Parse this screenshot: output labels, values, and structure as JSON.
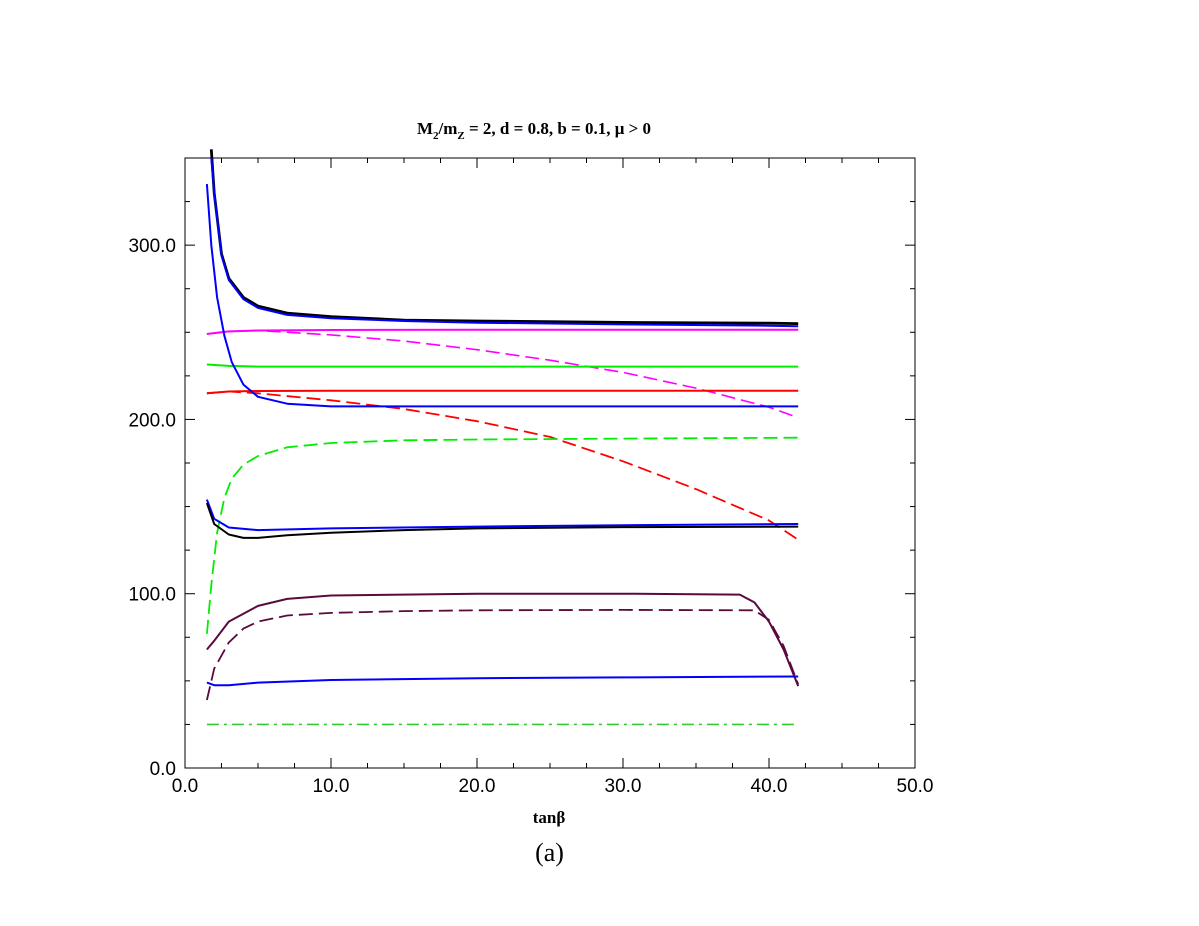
{
  "chart_data": {
    "type": "line",
    "title": {
      "parts": [
        "M",
        "2",
        "/m",
        "Z",
        " = 2, d = 0.8, b = 0.1, μ > 0"
      ]
    },
    "xlabel": "tanβ",
    "ylabel": "",
    "xlim": [
      0,
      50
    ],
    "ylim": [
      0,
      350
    ],
    "x_ticks": [
      0,
      10,
      20,
      30,
      40,
      50
    ],
    "x_tick_labels": [
      "0.0",
      "10.0",
      "20.0",
      "30.0",
      "40.0",
      "50.0"
    ],
    "y_ticks": [
      0,
      100,
      200,
      300
    ],
    "y_tick_labels": [
      "0.0",
      "100.0",
      "200.0",
      "300.0"
    ],
    "grid": false,
    "series": [
      {
        "color": "#000000",
        "dash": "solid",
        "width": 2.8,
        "x": [
          1.8,
          2,
          2.5,
          3,
          4,
          5,
          7,
          10,
          15,
          20,
          30,
          40,
          42
        ],
        "y": [
          355,
          330,
          295,
          281,
          270,
          265,
          261,
          259,
          257,
          256.5,
          255.7,
          255.2,
          255
        ]
      },
      {
        "color": "#0000ff",
        "dash": "solid",
        "width": 2,
        "x": [
          1.8,
          2,
          2.5,
          3,
          4,
          5,
          7,
          10,
          15,
          20,
          30,
          40,
          42
        ],
        "y": [
          350,
          330,
          294,
          280,
          269,
          264,
          260,
          258,
          256.5,
          255.5,
          254.5,
          253.8,
          253.5
        ]
      },
      {
        "color": "#ff00ff",
        "dash": "solid",
        "width": 2,
        "x": [
          1.5,
          3,
          5,
          10,
          20,
          30,
          42
        ],
        "y": [
          249,
          250.5,
          251,
          251.3,
          251.5,
          251.5,
          251.5
        ]
      },
      {
        "color": "#ff00ff",
        "dash": "dashed",
        "width": 1.6,
        "x": [
          1.5,
          3,
          5,
          10,
          15,
          20,
          25,
          30,
          35,
          40,
          42
        ],
        "y": [
          249,
          250.5,
          251,
          248.5,
          245,
          240,
          234,
          227,
          218,
          207,
          201
        ]
      },
      {
        "color": "#00ee00",
        "dash": "solid",
        "width": 2,
        "x": [
          1.5,
          3,
          5,
          10,
          20,
          30,
          42
        ],
        "y": [
          231.5,
          230.7,
          230.3,
          230.3,
          230.3,
          230.3,
          230.3
        ]
      },
      {
        "color": "#ff0000",
        "dash": "solid",
        "width": 2,
        "x": [
          1.5,
          3,
          5,
          10,
          20,
          30,
          42
        ],
        "y": [
          215,
          216,
          216.3,
          216.5,
          216.5,
          216.5,
          216.5
        ]
      },
      {
        "color": "#ff0000",
        "dash": "dashed",
        "width": 1.8,
        "x": [
          1.5,
          3,
          5,
          10,
          15,
          20,
          25,
          30,
          35,
          40,
          42
        ],
        "y": [
          215,
          216,
          215,
          211,
          206,
          199,
          190,
          176,
          160,
          142,
          131
        ]
      },
      {
        "color": "#0000ff",
        "dash": "solid",
        "width": 2,
        "x": [
          1.5,
          1.8,
          2.2,
          2.7,
          3.2,
          4,
          5,
          7,
          10,
          20,
          30,
          42
        ],
        "y": [
          335,
          300,
          270,
          248,
          233,
          220,
          213,
          209,
          207.5,
          207.5,
          207.5,
          207.5
        ]
      },
      {
        "color": "#00ee00",
        "dash": "dashed",
        "width": 1.8,
        "x": [
          1.5,
          1.8,
          2.2,
          2.7,
          3.2,
          4,
          5,
          7,
          10,
          15,
          20,
          30,
          42
        ],
        "y": [
          77,
          105,
          135,
          155,
          166,
          174,
          179,
          184,
          186.5,
          188,
          188.5,
          189,
          189.5
        ]
      },
      {
        "color": "#0000ff",
        "dash": "solid",
        "width": 2,
        "x": [
          1.5,
          2,
          3,
          5,
          10,
          20,
          30,
          42
        ],
        "y": [
          154,
          143,
          138,
          136.5,
          137.5,
          138.5,
          139.3,
          140
        ]
      },
      {
        "color": "#000000",
        "dash": "solid",
        "width": 2,
        "x": [
          1.5,
          2,
          3,
          4,
          5,
          7,
          10,
          15,
          20,
          30,
          42
        ],
        "y": [
          152,
          140,
          134,
          132,
          132,
          133.5,
          135,
          136.5,
          137.5,
          138.2,
          138.5
        ]
      },
      {
        "color": "#5a0a3c",
        "dash": "solid",
        "width": 2,
        "x": [
          1.5,
          2,
          3,
          5,
          7,
          10,
          20,
          30,
          38,
          39,
          40,
          41,
          42
        ],
        "y": [
          68,
          73,
          84,
          93,
          97,
          99,
          100,
          100,
          99.5,
          95,
          84,
          68,
          47
        ]
      },
      {
        "color": "#5a0a3c",
        "dash": "dashed",
        "width": 1.8,
        "x": [
          1.5,
          2,
          3,
          4,
          5,
          7,
          10,
          15,
          20,
          30,
          39,
          40,
          41,
          42
        ],
        "y": [
          39,
          57,
          72,
          80,
          84,
          87.5,
          89,
          90,
          90.5,
          90.7,
          90.5,
          85,
          70,
          48
        ]
      },
      {
        "color": "#0000ff",
        "dash": "solid",
        "width": 2,
        "x": [
          1.5,
          2,
          3,
          5,
          10,
          20,
          30,
          42
        ],
        "y": [
          49,
          47.5,
          47.5,
          49,
          50.5,
          51.5,
          52,
          52.5
        ]
      },
      {
        "color": "#33cc33",
        "dash": "dashdot",
        "width": 1.6,
        "x": [
          1.5,
          42
        ],
        "y": [
          25,
          25
        ]
      }
    ]
  },
  "caption": "(a)"
}
